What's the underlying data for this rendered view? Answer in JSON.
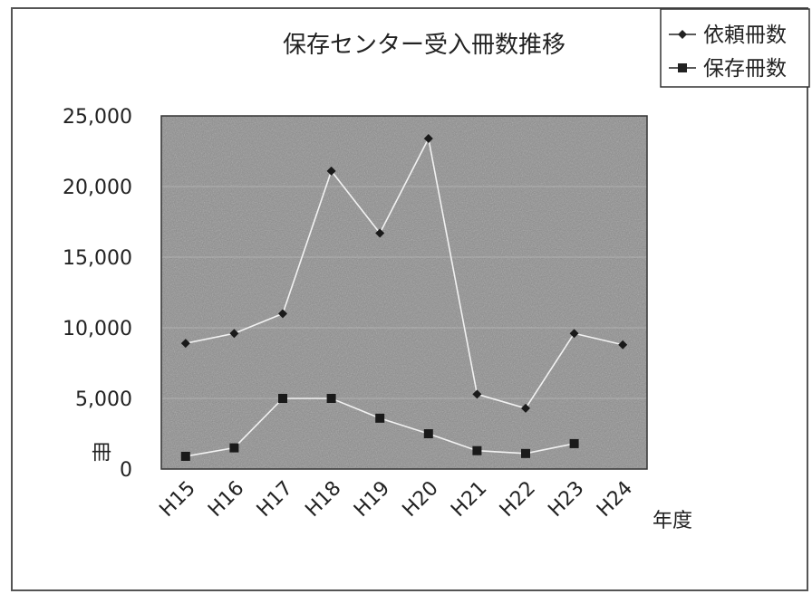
{
  "chart_data": {
    "type": "line",
    "title": "保存センター受入冊数推移",
    "xlabel": "年度",
    "ylabel": "冊",
    "categories": [
      "H15",
      "H16",
      "H17",
      "H18",
      "H19",
      "H20",
      "H21",
      "H22",
      "H23",
      "H24"
    ],
    "ylim": [
      0,
      25000
    ],
    "yticks": [
      0,
      5000,
      10000,
      15000,
      20000,
      25000
    ],
    "ytick_labels": [
      "0",
      "5,000",
      "10,000",
      "15,000",
      "20,000",
      "25,000"
    ],
    "grid": true,
    "legend_position": "top-right",
    "series": [
      {
        "name": "依頼冊数",
        "marker": "diamond",
        "values": [
          8900,
          9600,
          11000,
          21100,
          16700,
          23400,
          5300,
          4300,
          9600,
          8800
        ]
      },
      {
        "name": "保存冊数",
        "marker": "square",
        "values": [
          900,
          1500,
          5000,
          5000,
          3600,
          2500,
          1300,
          1100,
          1800,
          null
        ]
      }
    ],
    "colors": {
      "plot_background": "#8c8c8c",
      "line": "#f2f2f2",
      "marker": "#1a1a1a",
      "gridline": "#b0b0b0",
      "frame": "#555555"
    }
  }
}
